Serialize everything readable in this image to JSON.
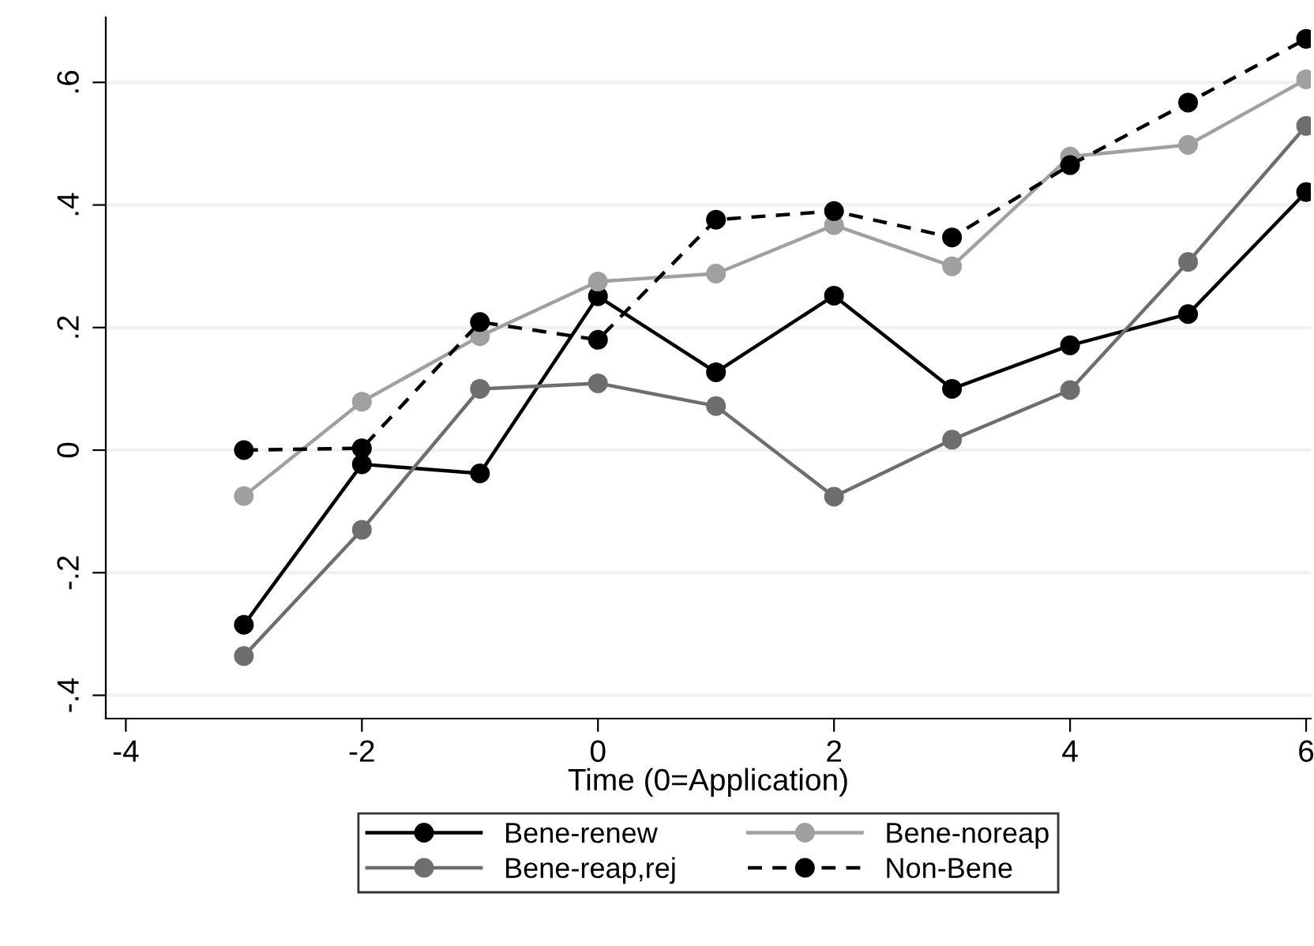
{
  "chart_data": {
    "type": "line",
    "xlabel": "Time (0=Application)",
    "x": [
      -3,
      -2,
      -1,
      0,
      1,
      2,
      3,
      4,
      5,
      6
    ],
    "series": [
      {
        "name": "Bene-renew",
        "color": "#000000",
        "line_style": "solid",
        "values": [
          -0.285,
          -0.023,
          -0.038,
          0.251,
          0.127,
          0.252,
          0.1,
          0.171,
          0.222,
          0.421
        ]
      },
      {
        "name": "Bene-reap,rej",
        "color": "#6e6e6e",
        "line_style": "solid",
        "values": [
          -0.336,
          -0.13,
          0.1,
          0.109,
          0.072,
          -0.076,
          0.017,
          0.098,
          0.307,
          0.529
        ]
      },
      {
        "name": "Bene-noreap",
        "color": "#a0a0a0",
        "line_style": "solid",
        "values": [
          -0.075,
          0.079,
          0.186,
          0.275,
          0.288,
          0.367,
          0.3,
          0.479,
          0.498,
          0.605
        ]
      },
      {
        "name": "Non-Bene",
        "color": "#000000",
        "line_style": "dashed",
        "values": [
          0,
          0.003,
          0.209,
          0.18,
          0.376,
          0.39,
          0.347,
          0.465,
          0.567,
          0.671
        ]
      }
    ],
    "marker": "circle",
    "xlim": [
      -4.17,
      6.04
    ],
    "ylim": [
      -0.438,
      0.706
    ],
    "xticks": [
      -4,
      -2,
      0,
      2,
      4,
      6
    ],
    "yticks": [
      {
        "value": -0.4,
        "label": "-.4"
      },
      {
        "value": -0.2,
        "label": "-.2"
      },
      {
        "value": 0,
        "label": "0"
      },
      {
        "value": 0.2,
        "label": ".2"
      },
      {
        "value": 0.4,
        "label": ".4"
      },
      {
        "value": 0.6,
        "label": ".6"
      }
    ],
    "grid": "y",
    "legend": "bottom"
  }
}
